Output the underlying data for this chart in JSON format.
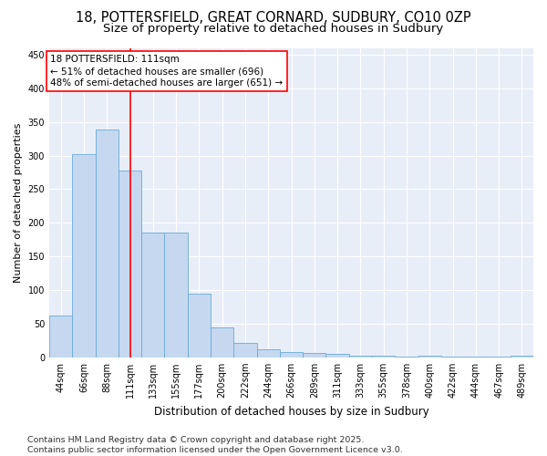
{
  "title_line1": "18, POTTERSFIELD, GREAT CORNARD, SUDBURY, CO10 0ZP",
  "title_line2": "Size of property relative to detached houses in Sudbury",
  "xlabel": "Distribution of detached houses by size in Sudbury",
  "ylabel": "Number of detached properties",
  "categories": [
    "44sqm",
    "66sqm",
    "88sqm",
    "111sqm",
    "133sqm",
    "155sqm",
    "177sqm",
    "200sqm",
    "222sqm",
    "244sqm",
    "266sqm",
    "289sqm",
    "311sqm",
    "333sqm",
    "355sqm",
    "378sqm",
    "400sqm",
    "422sqm",
    "444sqm",
    "467sqm",
    "489sqm"
  ],
  "values": [
    62,
    302,
    338,
    277,
    185,
    185,
    94,
    45,
    22,
    12,
    8,
    6,
    5,
    3,
    2,
    1,
    2,
    1,
    1,
    1,
    2
  ],
  "bar_color": "#c5d8f0",
  "bar_edge_color": "#6aaad4",
  "vline_x": 3,
  "vline_color": "red",
  "annotation_text": "18 POTTERSFIELD: 111sqm\n← 51% of detached houses are smaller (696)\n48% of semi-detached houses are larger (651) →",
  "ylim": [
    0,
    460
  ],
  "yticks": [
    0,
    50,
    100,
    150,
    200,
    250,
    300,
    350,
    400,
    450
  ],
  "bg_color": "#e8eef8",
  "footer_text": "Contains HM Land Registry data © Crown copyright and database right 2025.\nContains public sector information licensed under the Open Government Licence v3.0.",
  "title_fontsize": 10.5,
  "subtitle_fontsize": 9.5,
  "annotation_fontsize": 7.5,
  "footer_fontsize": 6.8,
  "xlabel_fontsize": 8.5,
  "ylabel_fontsize": 8.0,
  "tick_fontsize": 7.0
}
